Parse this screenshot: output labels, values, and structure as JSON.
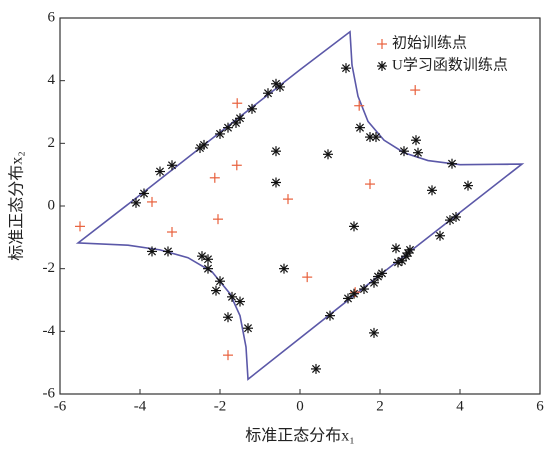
{
  "chart_data": {
    "type": "scatter",
    "xlabel": "标准正态分布x₁",
    "ylabel": "标准正态分布x₂",
    "xlim": [
      -6,
      6
    ],
    "ylim": [
      -6,
      6
    ],
    "xticks": [
      -6,
      -4,
      -2,
      0,
      2,
      4,
      6
    ],
    "yticks": [
      -6,
      -4,
      -2,
      0,
      2,
      4,
      6
    ],
    "legend": "upper right",
    "series": [
      {
        "color": "#5b58a8",
        "mode": "line",
        "x": [
          -5.55,
          -4,
          -2,
          0,
          1.25,
          1.3,
          1.45,
          1.7,
          2.1,
          2.6,
          3.2,
          4,
          5.55,
          2,
          -1.3,
          -1.35,
          -1.5,
          -1.75,
          -2.2,
          -2.8,
          -3.5,
          -4.3,
          -5.55
        ],
        "values": [
          -1.18,
          0.35,
          2.35,
          4.35,
          5.56,
          4.5,
          3.5,
          2.7,
          2.1,
          1.7,
          1.45,
          1.32,
          1.34,
          -2.2,
          -5.53,
          -4.5,
          -3.5,
          -2.8,
          -2.1,
          -1.65,
          -1.4,
          -1.25,
          -1.18
        ]
      },
      {
        "name": "初始训练点",
        "color": "#e8603c",
        "mode": "plus",
        "x": [
          -5.5,
          -3.7,
          -3.2,
          -1.57,
          -1.58,
          -2.13,
          -2.05,
          -0.3,
          0.18,
          -1.8,
          1.48,
          2.88,
          1.75,
          1.38
        ],
        "values": [
          -0.65,
          0.13,
          -0.83,
          3.28,
          1.3,
          0.9,
          -0.42,
          0.22,
          -2.27,
          -4.76,
          3.2,
          3.7,
          0.7,
          -2.75
        ]
      },
      {
        "name": "U学习函数训练点",
        "color": "#111111",
        "mode": "star",
        "x": [
          -4.1,
          -3.9,
          -3.5,
          -3.2,
          -2.5,
          -2.4,
          -2,
          -1.8,
          -1.6,
          -1.5,
          -1.2,
          -0.8,
          -0.6,
          -0.5,
          1.15,
          1.5,
          1.75,
          1.9,
          2.6,
          2.9,
          2.95,
          3.8,
          3.3,
          4.2,
          3.9,
          3.75,
          3.5,
          -0.6,
          -0.6,
          0.7,
          1.35,
          -0.4,
          -3.7,
          -3.3,
          -2.45,
          -2.3,
          -2.3,
          -2,
          -2.1,
          -1.7,
          -1.5,
          -1.8,
          -1.3,
          0.4,
          0.75,
          1.2,
          1.35,
          1.6,
          1.85,
          1.95,
          2.05,
          2.45,
          2.55,
          2.65,
          2.7,
          2.75,
          2.4,
          1.85
        ],
        "values": [
          0.1,
          0.4,
          1.1,
          1.3,
          1.85,
          1.95,
          2.3,
          2.5,
          2.65,
          2.8,
          3.1,
          3.6,
          3.9,
          3.8,
          4.4,
          2.5,
          2.2,
          2.2,
          1.75,
          2.1,
          1.7,
          1.35,
          0.5,
          0.65,
          -0.35,
          -0.45,
          -0.95,
          1.75,
          0.75,
          1.65,
          -0.65,
          -2,
          -1.45,
          -1.45,
          -1.6,
          -1.7,
          -2,
          -2.4,
          -2.7,
          -2.9,
          -3.05,
          -3.55,
          -3.9,
          -5.2,
          -3.5,
          -2.95,
          -2.8,
          -2.65,
          -2.45,
          -2.25,
          -2.15,
          -1.8,
          -1.75,
          -1.6,
          -1.5,
          -1.4,
          -1.35,
          -4.05
        ]
      }
    ]
  }
}
